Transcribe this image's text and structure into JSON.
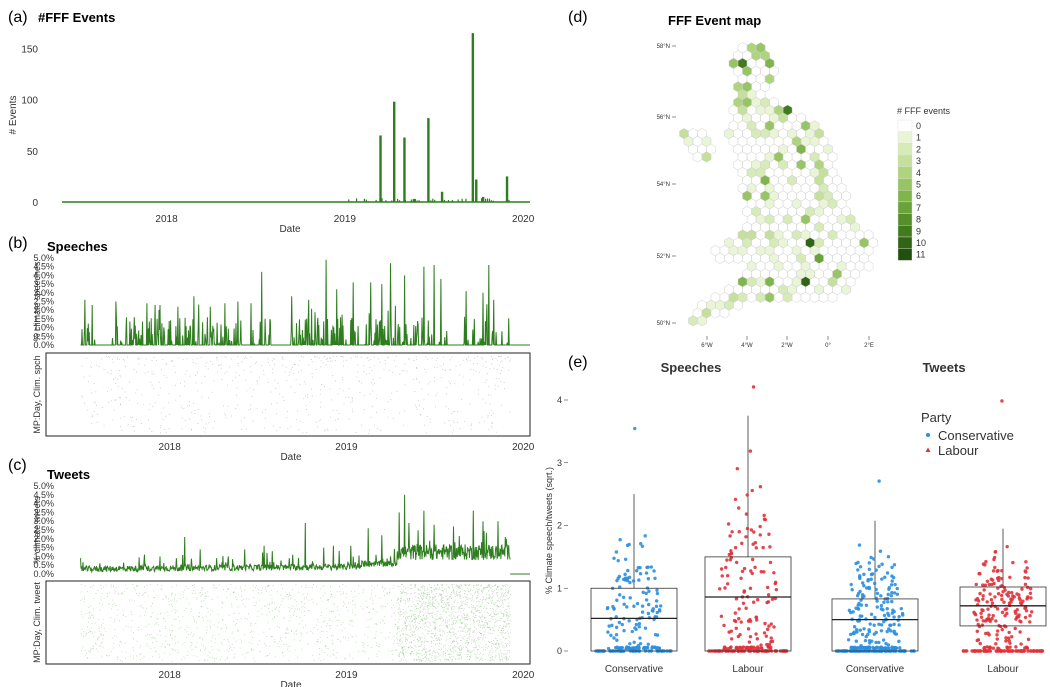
{
  "panels": {
    "a": {
      "letter": "(a)",
      "title": "#FFF Events"
    },
    "b": {
      "letter": "(b)",
      "title": "Speeches"
    },
    "c": {
      "letter": "(c)",
      "title": "Tweets"
    },
    "d": {
      "letter": "(d)",
      "title": "FFF Event map"
    },
    "e": {
      "letter": "(e)"
    }
  },
  "colors": {
    "line": "#2e7d1f",
    "conservative": "#2b8fe0",
    "labour": "#e0323a",
    "box": "#333333"
  },
  "chart_data": [
    {
      "id": "a",
      "type": "bar",
      "title": "#FFF Events",
      "xlabel": "Date",
      "ylabel": "# Events",
      "x_ticks": [
        "2018",
        "2019",
        "2020"
      ],
      "y_ticks": [
        "0",
        "50",
        "100",
        "150"
      ],
      "ylim": [
        0,
        170
      ],
      "xlim": [
        "2017-06-01",
        "2020-01-15"
      ],
      "spikes": [
        {
          "date": "2019-03-15",
          "value": 65
        },
        {
          "date": "2019-04-12",
          "value": 98
        },
        {
          "date": "2019-05-03",
          "value": 63
        },
        {
          "date": "2019-05-24",
          "value": 3
        },
        {
          "date": "2019-06-21",
          "value": 82
        },
        {
          "date": "2019-07-19",
          "value": 10
        },
        {
          "date": "2019-09-20",
          "value": 165
        },
        {
          "date": "2019-09-27",
          "value": 22
        },
        {
          "date": "2019-10-11",
          "value": 5
        },
        {
          "date": "2019-11-29",
          "value": 25
        }
      ]
    },
    {
      "id": "b",
      "type": "line",
      "title": "Speeches",
      "xlabel": "Date",
      "ylabel": "% climate speeches",
      "raster_ylabel": "MP:Day, Clim. spch",
      "x_ticks": [
        "2018",
        "2019",
        "2020"
      ],
      "y_ticks": [
        "0.0%",
        "0.5%",
        "1.0%",
        "1.5%",
        "2.0%",
        "2.5%",
        "3.0%",
        "3.5%",
        "4.0%",
        "4.5%",
        "5.0%"
      ],
      "ylim": [
        0,
        5
      ],
      "peaks": [
        {
          "date": "2017-07-10",
          "value": 2.6
        },
        {
          "date": "2017-07-25",
          "value": 2.3
        },
        {
          "date": "2017-09-12",
          "value": 2.5
        },
        {
          "date": "2017-10-20",
          "value": 1.6
        },
        {
          "date": "2017-11-15",
          "value": 2.4
        },
        {
          "date": "2017-12-12",
          "value": 2.3
        },
        {
          "date": "2018-01-18",
          "value": 2.2
        },
        {
          "date": "2018-02-20",
          "value": 2.8
        },
        {
          "date": "2018-03-20",
          "value": 1.6
        },
        {
          "date": "2018-04-25",
          "value": 2.4
        },
        {
          "date": "2018-05-22",
          "value": 2.5
        },
        {
          "date": "2018-06-18",
          "value": 2.4
        },
        {
          "date": "2018-07-10",
          "value": 4.2
        },
        {
          "date": "2018-09-10",
          "value": 2.8
        },
        {
          "date": "2018-10-15",
          "value": 2.6
        },
        {
          "date": "2018-11-20",
          "value": 4.9
        },
        {
          "date": "2018-12-12",
          "value": 3.2
        },
        {
          "date": "2019-01-15",
          "value": 3.6
        },
        {
          "date": "2019-02-20",
          "value": 3.6
        },
        {
          "date": "2019-03-15",
          "value": 3.5
        },
        {
          "date": "2019-04-02",
          "value": 4.7
        },
        {
          "date": "2019-05-01",
          "value": 4.0
        },
        {
          "date": "2019-06-10",
          "value": 4.5
        },
        {
          "date": "2019-07-01",
          "value": 4.6
        },
        {
          "date": "2019-07-15",
          "value": 3.8
        },
        {
          "date": "2019-09-05",
          "value": 3.1
        },
        {
          "date": "2019-10-10",
          "value": 3.0
        },
        {
          "date": "2019-10-22",
          "value": 4.6
        },
        {
          "date": "2019-11-01",
          "value": 2.6
        }
      ]
    },
    {
      "id": "c",
      "type": "line",
      "title": "Tweets",
      "xlabel": "Date",
      "ylabel": "% climate tweets",
      "raster_ylabel": "MP:Day, Clim. tweet",
      "x_ticks": [
        "2018",
        "2019",
        "2020"
      ],
      "y_ticks": [
        "0.0%",
        "0.5%",
        "1.0%",
        "1.5%",
        "2.0%",
        "2.5%",
        "3.0%",
        "3.5%",
        "4.0%",
        "4.5%",
        "5.0%"
      ],
      "ylim": [
        0,
        5
      ],
      "peaks": [
        {
          "date": "2017-07-01",
          "value": 0.9
        },
        {
          "date": "2017-08-10",
          "value": 0.6
        },
        {
          "date": "2017-11-10",
          "value": 1.1
        },
        {
          "date": "2017-12-12",
          "value": 1.0
        },
        {
          "date": "2018-01-15",
          "value": 0.9
        },
        {
          "date": "2018-02-01",
          "value": 2.1
        },
        {
          "date": "2018-03-05",
          "value": 1.4
        },
        {
          "date": "2018-05-02",
          "value": 1.0
        },
        {
          "date": "2018-06-05",
          "value": 1.4
        },
        {
          "date": "2018-07-15",
          "value": 1.6
        },
        {
          "date": "2018-08-01",
          "value": 1.3
        },
        {
          "date": "2018-09-05",
          "value": 0.9
        },
        {
          "date": "2018-10-08",
          "value": 2.9
        },
        {
          "date": "2018-11-15",
          "value": 1.5
        },
        {
          "date": "2018-12-05",
          "value": 1.6
        },
        {
          "date": "2019-01-10",
          "value": 1.6
        },
        {
          "date": "2019-02-15",
          "value": 2.6
        },
        {
          "date": "2019-03-15",
          "value": 2.2
        },
        {
          "date": "2019-04-20",
          "value": 3.5
        },
        {
          "date": "2019-05-01",
          "value": 4.5
        },
        {
          "date": "2019-05-10",
          "value": 2.9
        },
        {
          "date": "2019-06-10",
          "value": 3.6
        },
        {
          "date": "2019-07-01",
          "value": 2.8
        },
        {
          "date": "2019-08-10",
          "value": 2.7
        },
        {
          "date": "2019-09-20",
          "value": 3.6
        },
        {
          "date": "2019-10-10",
          "value": 3.0
        },
        {
          "date": "2019-11-10",
          "value": 3.0
        },
        {
          "date": "2019-11-25",
          "value": 2.1
        }
      ]
    },
    {
      "id": "d",
      "type": "heatmap",
      "title": "FFF Event map",
      "legend_title": "# FFF events",
      "legend_levels": [
        "0",
        "1",
        "2",
        "3",
        "4",
        "5",
        "6",
        "7",
        "8",
        "9",
        "10",
        "11"
      ],
      "legend_colors": [
        "#ffffff",
        "#eaf5d8",
        "#d6ebb8",
        "#c4e09c",
        "#afd47e",
        "#97c564",
        "#80b54d",
        "#69a33a",
        "#548f2a",
        "#427a1e",
        "#316515",
        "#22500d"
      ],
      "lat_ticks": [
        "58°N",
        "56°N",
        "54°N",
        "52°N",
        "50°N"
      ],
      "lon_ticks": [
        "6°W",
        "4°W",
        "2°W",
        "0°",
        "2°E"
      ]
    },
    {
      "id": "e",
      "type": "scatter",
      "ylabel": "% Climate speech/tweets (sqrt.)",
      "y_ticks": [
        "0",
        "1",
        "2",
        "3",
        "4"
      ],
      "ylim": [
        0,
        4.2
      ],
      "legend_title": "Party",
      "legend": [
        "Conservative",
        "Labour"
      ],
      "facets": [
        {
          "title": "Speeches",
          "groups": [
            {
              "party": "Conservative",
              "q1": 0.0,
              "median": 0.52,
              "q3": 1.0,
              "max": 3.55,
              "n": 200
            },
            {
              "party": "Labour",
              "q1": 0.0,
              "median": 0.86,
              "q3": 1.5,
              "max": 4.2,
              "n": 220
            }
          ]
        },
        {
          "title": "Tweets",
          "groups": [
            {
              "party": "Conservative",
              "q1": 0.0,
              "median": 0.5,
              "q3": 0.83,
              "max": 2.7,
              "n": 280
            },
            {
              "party": "Labour",
              "q1": 0.4,
              "median": 0.72,
              "q3": 1.02,
              "max": 3.97,
              "n": 260
            }
          ]
        }
      ]
    }
  ]
}
